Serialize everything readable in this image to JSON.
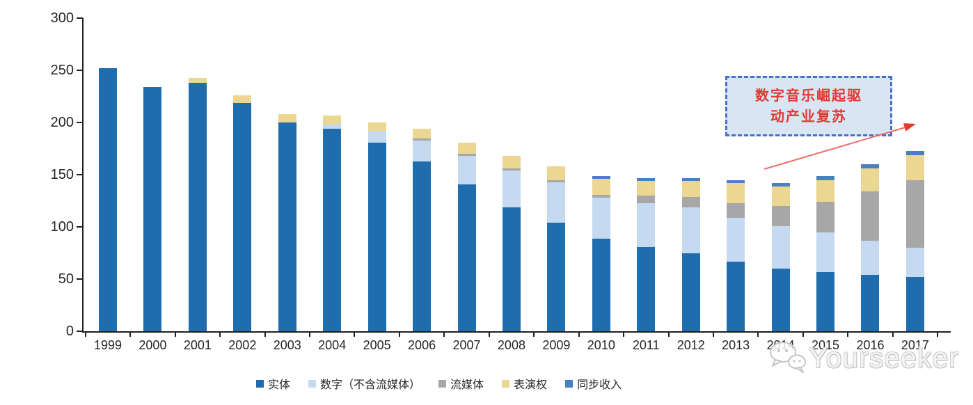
{
  "chart_data": {
    "type": "bar",
    "stacked": true,
    "title": "",
    "xlabel": "",
    "ylabel": "",
    "x": [
      "1999",
      "2000",
      "2001",
      "2002",
      "2003",
      "2004",
      "2005",
      "2006",
      "2007",
      "2008",
      "2009",
      "2010",
      "2011",
      "2012",
      "2013",
      "2014",
      "2015",
      "2016",
      "2017"
    ],
    "series": [
      {
        "name": "实体",
        "color": "#1F6DAE",
        "values": [
          252,
          234,
          238,
          219,
          200,
          194,
          181,
          163,
          141,
          119,
          104,
          89,
          81,
          75,
          67,
          60,
          57,
          54,
          52
        ]
      },
      {
        "name": "数字（不含流媒体）",
        "color": "#C5DAF0",
        "values": [
          0,
          0,
          0,
          0,
          0,
          4,
          11,
          20,
          27,
          35,
          39,
          39,
          42,
          44,
          42,
          41,
          38,
          33,
          28
        ]
      },
      {
        "name": "流媒体",
        "color": "#A7A7A7",
        "values": [
          0,
          0,
          0,
          0,
          0,
          0,
          0,
          2,
          2,
          2,
          2,
          3,
          7,
          10,
          14,
          19,
          29,
          47,
          65
        ]
      },
      {
        "name": "表演权",
        "color": "#EBD692",
        "values": [
          0,
          0,
          5,
          7,
          8,
          9,
          8,
          9,
          11,
          12,
          13,
          15,
          14,
          15,
          19,
          19,
          21,
          22,
          24
        ]
      },
      {
        "name": "同步收入",
        "color": "#4A7FC1",
        "values": [
          0,
          0,
          0,
          0,
          0,
          0,
          0,
          0,
          0,
          0,
          0,
          3,
          3,
          3,
          3,
          3,
          4,
          4,
          4
        ]
      }
    ],
    "ylim": [
      0,
      300
    ],
    "yticks": [
      "0",
      "50",
      "100",
      "150",
      "200",
      "250",
      "300"
    ],
    "grid": false,
    "legend_position": "bottom"
  },
  "annotation": {
    "text": "数字音乐崛起驱动产业复苏",
    "line1": "数字音乐崛起驱",
    "line2": "动产业复苏",
    "box_fill": "#D9E5F3",
    "border_color": "#4472C4",
    "text_color": "#E03A34",
    "arrow_line_color": "#ED6D68",
    "arrow_head_color": "#E23B2E"
  },
  "watermark": {
    "text": "Yourseeker",
    "icon": "chat-bubbles-icon",
    "color": "#C9C9C9"
  }
}
